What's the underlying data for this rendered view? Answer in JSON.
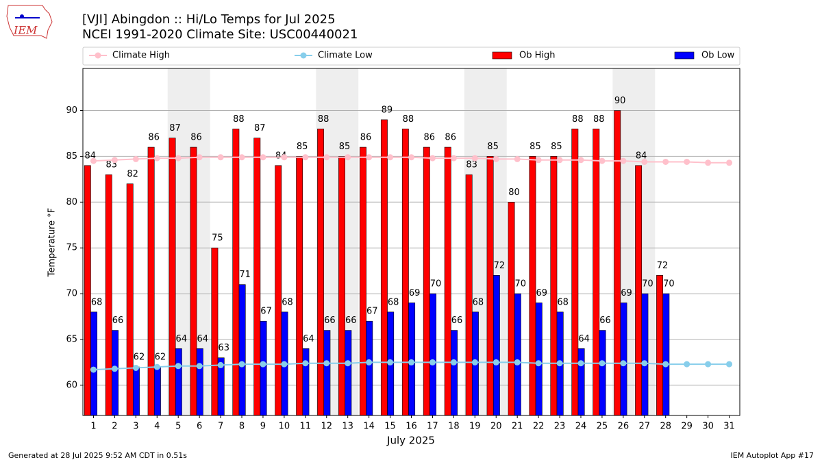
{
  "chart_data": {
    "type": "bar",
    "title": "[VJI] Abingdon :: Hi/Lo Temps for Jul 2025",
    "subtitle": "NCEI 1991-2020 Climate Site: USC00440021",
    "y_label": "Temperature °F",
    "x_label": "July 2025",
    "footer_left": "Generated at 28 Jul 2025 9:52 AM CDT in 0.51s",
    "footer_right": "IEM Autoplot App #17",
    "logo_text": "IEM",
    "x": [
      1,
      2,
      3,
      4,
      5,
      6,
      7,
      8,
      9,
      10,
      11,
      12,
      13,
      14,
      15,
      16,
      17,
      18,
      19,
      20,
      21,
      22,
      23,
      24,
      25,
      26,
      27,
      28,
      29,
      30,
      31
    ],
    "xlim": [
      0.5,
      31.5
    ],
    "xticks": [
      1,
      2,
      3,
      4,
      5,
      6,
      7,
      8,
      9,
      10,
      11,
      12,
      13,
      14,
      15,
      16,
      17,
      18,
      19,
      20,
      21,
      22,
      23,
      24,
      25,
      26,
      27,
      28,
      29,
      30,
      31
    ],
    "ylim": [
      56.7,
      94.6
    ],
    "yticks": [
      60,
      65,
      70,
      75,
      80,
      85,
      90
    ],
    "grid": true,
    "weekend_shading": [
      [
        4.5,
        6.5
      ],
      [
        11.5,
        13.5
      ],
      [
        18.5,
        20.5
      ],
      [
        25.5,
        27.5
      ]
    ],
    "series": [
      {
        "name": "Climate High",
        "type": "line",
        "color": "#ffc0cb",
        "values": [
          84.5,
          84.6,
          84.7,
          84.8,
          84.8,
          84.9,
          84.9,
          84.9,
          84.9,
          84.9,
          84.9,
          84.9,
          84.9,
          84.9,
          84.9,
          84.9,
          84.8,
          84.8,
          84.8,
          84.7,
          84.7,
          84.6,
          84.6,
          84.6,
          84.5,
          84.5,
          84.4,
          84.4,
          84.4,
          84.3,
          84.3
        ]
      },
      {
        "name": "Climate Low",
        "type": "line",
        "color": "#87ceeb",
        "values": [
          61.7,
          61.8,
          61.9,
          62.0,
          62.1,
          62.1,
          62.2,
          62.3,
          62.3,
          62.3,
          62.4,
          62.4,
          62.4,
          62.5,
          62.5,
          62.5,
          62.5,
          62.5,
          62.5,
          62.5,
          62.5,
          62.4,
          62.4,
          62.4,
          62.4,
          62.4,
          62.4,
          62.3,
          62.3,
          62.3,
          62.3
        ]
      },
      {
        "name": "Ob High",
        "type": "bar",
        "color": "#ff0000",
        "values": [
          84,
          83,
          82,
          86,
          87,
          86,
          75,
          88,
          87,
          84,
          85,
          88,
          85,
          86,
          89,
          88,
          86,
          86,
          83,
          85,
          80,
          85,
          85,
          88,
          88,
          90,
          84,
          72,
          null,
          null,
          null
        ]
      },
      {
        "name": "Ob Low",
        "type": "bar",
        "color": "#0000ff",
        "values": [
          68,
          66,
          62,
          62,
          64,
          64,
          63,
          71,
          67,
          68,
          64,
          66,
          66,
          67,
          68,
          69,
          70,
          66,
          68,
          72,
          70,
          69,
          68,
          64,
          66,
          69,
          70,
          70,
          null,
          null,
          null
        ]
      }
    ]
  }
}
